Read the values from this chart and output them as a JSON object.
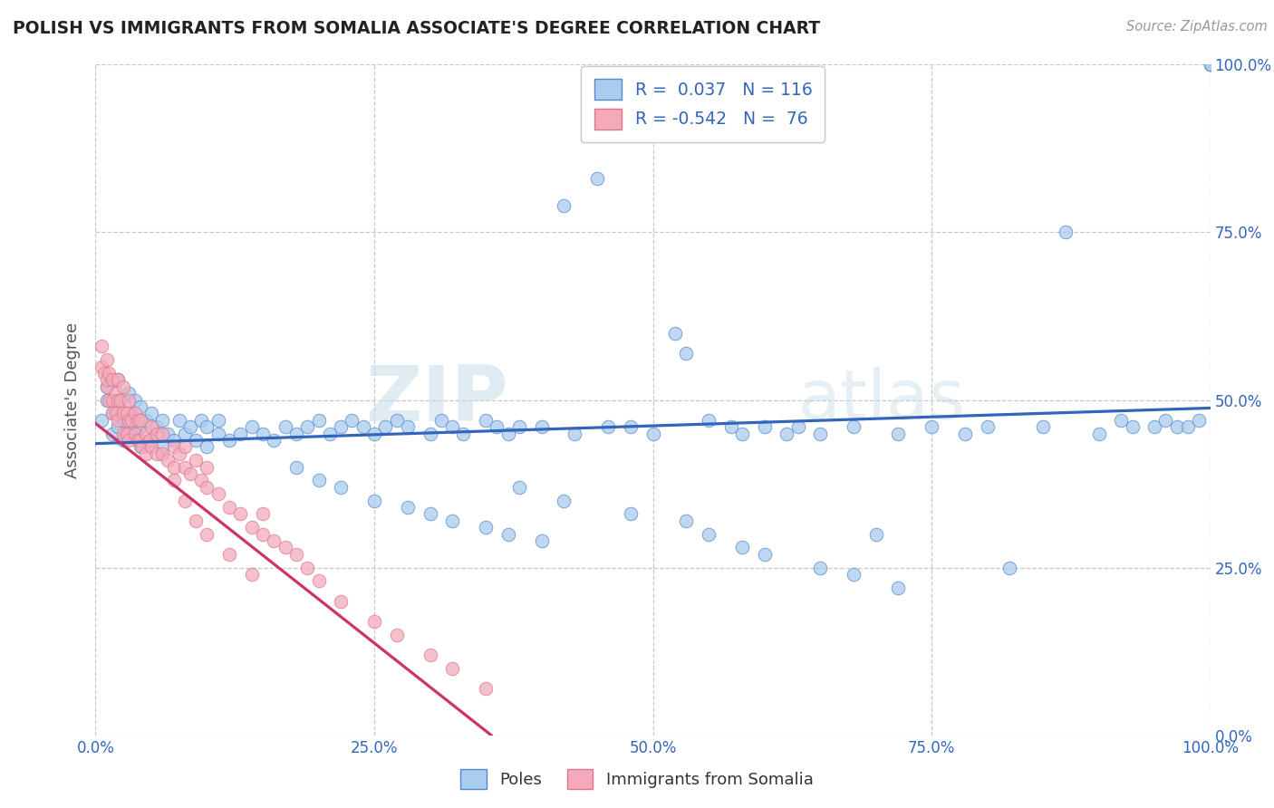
{
  "title": "POLISH VS IMMIGRANTS FROM SOMALIA ASSOCIATE'S DEGREE CORRELATION CHART",
  "source": "Source: ZipAtlas.com",
  "ylabel": "Associate's Degree",
  "r_poles": 0.037,
  "n_poles": 116,
  "r_somalia": -0.542,
  "n_somalia": 76,
  "xlim": [
    0.0,
    1.0
  ],
  "ylim": [
    0.0,
    1.0
  ],
  "ytick_vals": [
    0.0,
    0.25,
    0.5,
    0.75,
    1.0
  ],
  "xtick_vals": [
    0.0,
    0.25,
    0.5,
    0.75,
    1.0
  ],
  "color_poles_fill": "#aaccee",
  "color_poles_edge": "#5588cc",
  "color_somalia_fill": "#f4aabc",
  "color_somalia_edge": "#dd7788",
  "color_poles_line": "#3366bb",
  "color_somalia_line": "#cc3366",
  "watermark_color": "#d8e8f0",
  "grid_color": "#bbbbbb",
  "legend_labels": [
    "Poles",
    "Immigrants from Somalia"
  ],
  "background_color": "#ffffff",
  "title_color": "#222222",
  "axis_label_color": "#555555",
  "tick_color": "#3366bb",
  "source_color": "#999999",
  "poles_x": [
    0.005,
    0.01,
    0.01,
    0.015,
    0.015,
    0.02,
    0.02,
    0.02,
    0.025,
    0.025,
    0.03,
    0.03,
    0.03,
    0.035,
    0.035,
    0.04,
    0.04,
    0.04,
    0.045,
    0.05,
    0.05,
    0.055,
    0.06,
    0.06,
    0.065,
    0.07,
    0.075,
    0.08,
    0.085,
    0.09,
    0.095,
    0.1,
    0.1,
    0.11,
    0.11,
    0.12,
    0.13,
    0.14,
    0.15,
    0.16,
    0.17,
    0.18,
    0.19,
    0.2,
    0.21,
    0.22,
    0.23,
    0.24,
    0.25,
    0.26,
    0.27,
    0.28,
    0.3,
    0.31,
    0.32,
    0.33,
    0.35,
    0.36,
    0.37,
    0.38,
    0.4,
    0.42,
    0.43,
    0.45,
    0.46,
    0.48,
    0.5,
    0.52,
    0.53,
    0.55,
    0.57,
    0.58,
    0.6,
    0.62,
    0.63,
    0.65,
    0.68,
    0.7,
    0.72,
    0.75,
    0.78,
    0.8,
    0.82,
    0.85,
    0.87,
    0.9,
    0.92,
    0.93,
    0.95,
    0.96,
    0.97,
    0.98,
    0.99,
    1.0,
    1.0,
    1.0,
    0.38,
    0.42,
    0.48,
    0.53,
    0.55,
    0.58,
    0.6,
    0.65,
    0.68,
    0.72,
    0.18,
    0.2,
    0.22,
    0.25,
    0.28,
    0.3,
    0.32,
    0.35,
    0.37,
    0.4
  ],
  "poles_y": [
    0.47,
    0.5,
    0.52,
    0.45,
    0.48,
    0.46,
    0.5,
    0.53,
    0.44,
    0.47,
    0.45,
    0.48,
    0.51,
    0.46,
    0.5,
    0.43,
    0.46,
    0.49,
    0.47,
    0.44,
    0.48,
    0.46,
    0.43,
    0.47,
    0.45,
    0.44,
    0.47,
    0.45,
    0.46,
    0.44,
    0.47,
    0.43,
    0.46,
    0.45,
    0.47,
    0.44,
    0.45,
    0.46,
    0.45,
    0.44,
    0.46,
    0.45,
    0.46,
    0.47,
    0.45,
    0.46,
    0.47,
    0.46,
    0.45,
    0.46,
    0.47,
    0.46,
    0.45,
    0.47,
    0.46,
    0.45,
    0.47,
    0.46,
    0.45,
    0.46,
    0.46,
    0.79,
    0.45,
    0.83,
    0.46,
    0.46,
    0.45,
    0.6,
    0.57,
    0.47,
    0.46,
    0.45,
    0.46,
    0.45,
    0.46,
    0.45,
    0.46,
    0.3,
    0.45,
    0.46,
    0.45,
    0.46,
    0.25,
    0.46,
    0.75,
    0.45,
    0.47,
    0.46,
    0.46,
    0.47,
    0.46,
    0.46,
    0.47,
    1.0,
    1.0,
    1.0,
    0.37,
    0.35,
    0.33,
    0.32,
    0.3,
    0.28,
    0.27,
    0.25,
    0.24,
    0.22,
    0.4,
    0.38,
    0.37,
    0.35,
    0.34,
    0.33,
    0.32,
    0.31,
    0.3,
    0.29
  ],
  "somalia_x": [
    0.005,
    0.005,
    0.008,
    0.01,
    0.01,
    0.01,
    0.012,
    0.012,
    0.015,
    0.015,
    0.015,
    0.018,
    0.018,
    0.02,
    0.02,
    0.02,
    0.022,
    0.025,
    0.025,
    0.025,
    0.028,
    0.028,
    0.03,
    0.03,
    0.03,
    0.032,
    0.035,
    0.035,
    0.038,
    0.038,
    0.04,
    0.04,
    0.042,
    0.045,
    0.045,
    0.048,
    0.05,
    0.05,
    0.055,
    0.055,
    0.06,
    0.06,
    0.065,
    0.07,
    0.07,
    0.075,
    0.08,
    0.08,
    0.085,
    0.09,
    0.095,
    0.1,
    0.1,
    0.11,
    0.12,
    0.13,
    0.14,
    0.15,
    0.15,
    0.16,
    0.17,
    0.18,
    0.19,
    0.2,
    0.22,
    0.25,
    0.27,
    0.3,
    0.32,
    0.35,
    0.07,
    0.08,
    0.09,
    0.1,
    0.12,
    0.14
  ],
  "somalia_y": [
    0.55,
    0.58,
    0.54,
    0.52,
    0.56,
    0.53,
    0.5,
    0.54,
    0.5,
    0.53,
    0.48,
    0.51,
    0.48,
    0.5,
    0.53,
    0.47,
    0.5,
    0.48,
    0.52,
    0.45,
    0.48,
    0.45,
    0.47,
    0.5,
    0.44,
    0.47,
    0.45,
    0.48,
    0.44,
    0.47,
    0.44,
    0.47,
    0.43,
    0.45,
    0.42,
    0.44,
    0.43,
    0.46,
    0.42,
    0.45,
    0.42,
    0.45,
    0.41,
    0.43,
    0.4,
    0.42,
    0.4,
    0.43,
    0.39,
    0.41,
    0.38,
    0.4,
    0.37,
    0.36,
    0.34,
    0.33,
    0.31,
    0.3,
    0.33,
    0.29,
    0.28,
    0.27,
    0.25,
    0.23,
    0.2,
    0.17,
    0.15,
    0.12,
    0.1,
    0.07,
    0.38,
    0.35,
    0.32,
    0.3,
    0.27,
    0.24
  ],
  "poles_trend_x0": 0.0,
  "poles_trend_x1": 1.0,
  "poles_trend_y0": 0.435,
  "poles_trend_y1": 0.488,
  "somalia_trend_x0": 0.0,
  "somalia_trend_x1": 0.355,
  "somalia_trend_y0": 0.465,
  "somalia_trend_y1": 0.0
}
